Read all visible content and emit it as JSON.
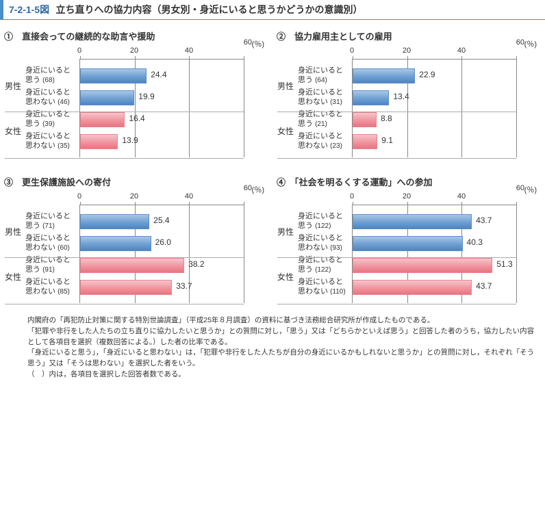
{
  "header": {
    "fig_num": "7-2-1-5図",
    "title": "立ち直りへの協力内容（男女別・身近にいると思うかどうかの意識別）"
  },
  "axis": {
    "unit": "(％)",
    "xmin": 0,
    "xmax": 60,
    "ticks": [
      0,
      20,
      40
    ],
    "last_tick": 60
  },
  "row_labels": {
    "yes_l1": "身近にいると",
    "yes_l2": "思う",
    "no_l1": "身近にいると",
    "no_l2": "思わない"
  },
  "gender": {
    "m": "男性",
    "f": "女性"
  },
  "colors": {
    "male_bar": "#6f9fd2",
    "female_bar": "#ef959f",
    "axis": "#888888",
    "divider": "#aaaaaa",
    "header_accent": "#4a8fc7",
    "header_num": "#2e6aa3"
  },
  "panels": [
    {
      "id": 1,
      "title": "①　直接会っての継続的な助言や援助",
      "rows": [
        {
          "g": "m",
          "n": 68,
          "v": 24.4
        },
        {
          "g": "m",
          "n": 46,
          "v": 19.9
        },
        {
          "g": "f",
          "n": 39,
          "v": 16.4
        },
        {
          "g": "f",
          "n": 35,
          "v": 13.9
        }
      ]
    },
    {
      "id": 2,
      "title": "②　協力雇用主としての雇用",
      "rows": [
        {
          "g": "m",
          "n": 64,
          "v": 22.9
        },
        {
          "g": "m",
          "n": 31,
          "v": 13.4
        },
        {
          "g": "f",
          "n": 21,
          "v": 8.8
        },
        {
          "g": "f",
          "n": 23,
          "v": 9.1
        }
      ]
    },
    {
      "id": 3,
      "title": "③　更生保護施設への寄付",
      "rows": [
        {
          "g": "m",
          "n": 71,
          "v": 25.4
        },
        {
          "g": "m",
          "n": 60,
          "v": 26.0
        },
        {
          "g": "f",
          "n": 91,
          "v": 38.2
        },
        {
          "g": "f",
          "n": 85,
          "v": 33.7
        }
      ]
    },
    {
      "id": 4,
      "title": "④　「社会を明るくする運動」への参加",
      "rows": [
        {
          "g": "m",
          "n": 122,
          "v": 43.7
        },
        {
          "g": "m",
          "n": 93,
          "v": 40.3
        },
        {
          "g": "f",
          "n": 122,
          "v": 51.3
        },
        {
          "g": "f",
          "n": 110,
          "v": 43.7
        }
      ]
    }
  ],
  "notes": {
    "lead": "注",
    "items": [
      "内閣府の「再犯防止対策に関する特別世論調査」（平成25年８月調査）の資料に基づき法務総合研究所が作成したものである。",
      "「犯罪や非行をした人たちの立ち直りに協力したいと思うか」との質問に対し，「思う」又は「どちらかといえば思う」と回答した者のうち，協力したい内容として各項目を選択（複数回答による。）した者の比率である。",
      "「身近にいると思う」，「身近にいると思わない」は，「犯罪や非行をした人たちが自分の身近にいるかもしれないと思うか」との質問に対し，それぞれ「そう思う」又は「そうは思わない」を選択した者をいう。",
      "（　）内は，各項目を選択した回答者数である。"
    ]
  }
}
